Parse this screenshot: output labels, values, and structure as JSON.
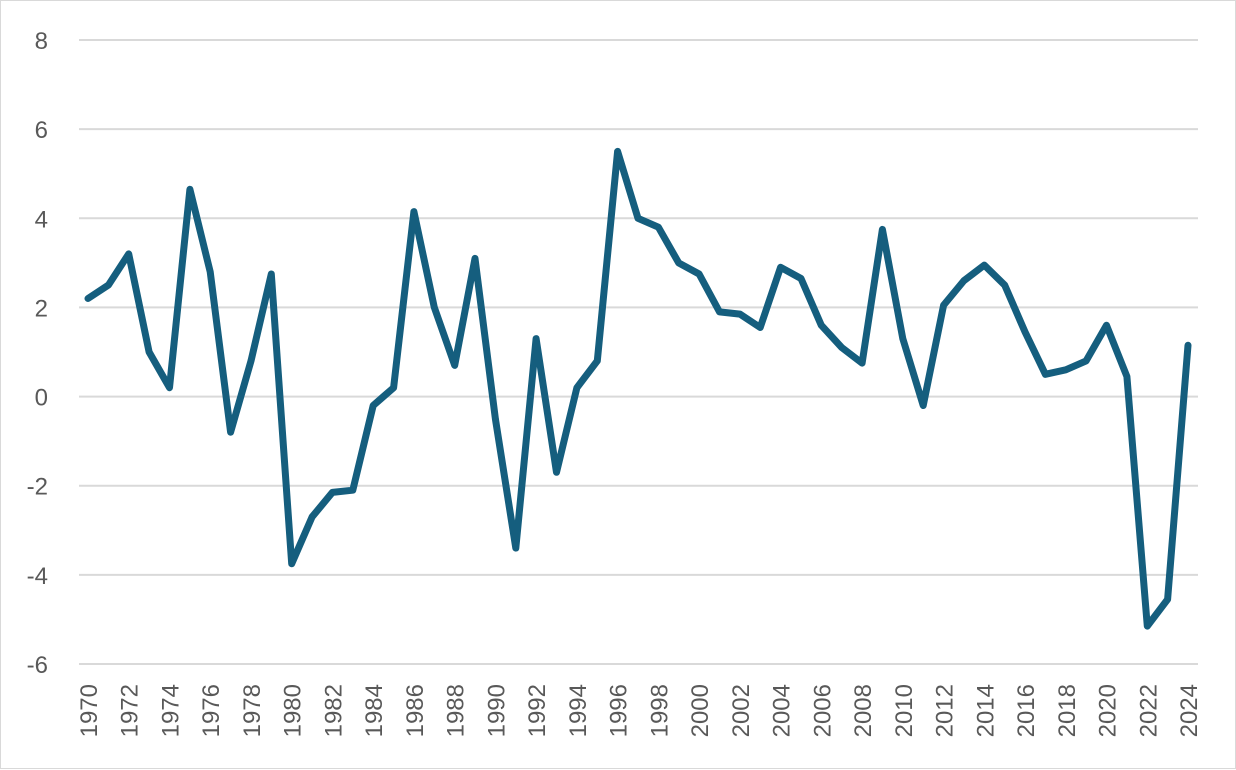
{
  "chart_data": {
    "type": "line",
    "title": "",
    "xlabel": "",
    "ylabel": "",
    "x": [
      1970,
      1971,
      1972,
      1973,
      1974,
      1975,
      1976,
      1977,
      1978,
      1979,
      1980,
      1981,
      1982,
      1983,
      1984,
      1985,
      1986,
      1987,
      1988,
      1989,
      1990,
      1991,
      1992,
      1993,
      1994,
      1995,
      1996,
      1997,
      1998,
      1999,
      2000,
      2001,
      2002,
      2003,
      2004,
      2005,
      2006,
      2007,
      2008,
      2009,
      2010,
      2011,
      2012,
      2013,
      2014,
      2015,
      2016,
      2017,
      2018,
      2019,
      2020,
      2021,
      2022,
      2023,
      2024
    ],
    "series": [
      {
        "color": "#155e7e",
        "values": [
          2.2,
          2.5,
          3.2,
          1.0,
          0.2,
          4.65,
          2.8,
          -0.8,
          0.8,
          2.75,
          -3.75,
          -2.7,
          -2.15,
          -2.1,
          -0.2,
          0.2,
          4.15,
          2.0,
          0.7,
          3.1,
          -0.5,
          -3.4,
          1.3,
          -1.7,
          0.2,
          0.8,
          5.5,
          4.0,
          3.8,
          3.0,
          2.75,
          1.9,
          1.85,
          1.55,
          2.9,
          2.65,
          1.6,
          1.1,
          0.75,
          3.75,
          1.3,
          -0.2,
          2.05,
          2.6,
          2.95,
          2.5,
          1.45,
          0.5,
          0.6,
          0.8,
          1.6,
          0.45,
          -5.15,
          -4.55,
          1.15
        ]
      }
    ],
    "ylim": [
      -6,
      8
    ],
    "y_ticks": [
      "8",
      "6",
      "4",
      "2",
      "0",
      "-2",
      "-4",
      "-6"
    ],
    "y_tick_values": [
      8,
      6,
      4,
      2,
      0,
      -2,
      -4,
      -6
    ],
    "x_tick_labels": [
      "1970",
      "1972",
      "1974",
      "1976",
      "1978",
      "1980",
      "1982",
      "1984",
      "1986",
      "1988",
      "1990",
      "1992",
      "1994",
      "1996",
      "1998",
      "2000",
      "2002",
      "2004",
      "2006",
      "2008",
      "2010",
      "2012",
      "2014",
      "2016",
      "2018",
      "2020",
      "2022",
      "2024"
    ],
    "x_tick_values": [
      1970,
      1972,
      1974,
      1976,
      1978,
      1980,
      1982,
      1984,
      1986,
      1988,
      1990,
      1992,
      1994,
      1996,
      1998,
      2000,
      2002,
      2004,
      2006,
      2008,
      2010,
      2012,
      2014,
      2016,
      2018,
      2020,
      2022,
      2024
    ],
    "grid": true,
    "legend": "none",
    "gridline_color": "#d9d9d9",
    "tick_label_color": "#595959"
  }
}
